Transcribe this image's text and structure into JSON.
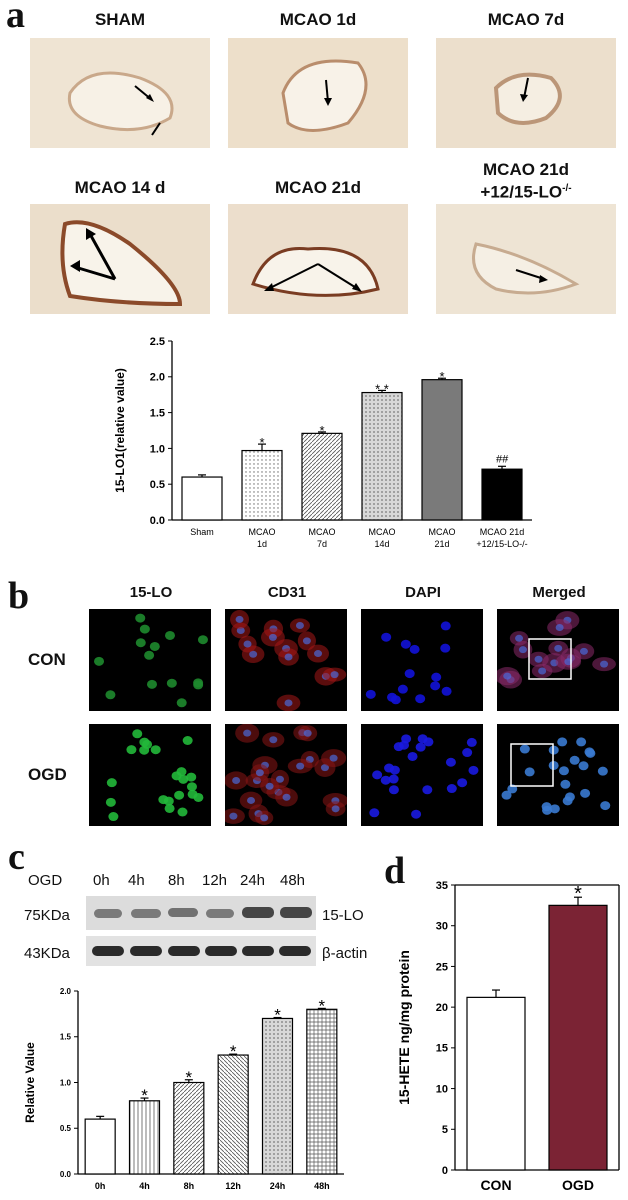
{
  "panel_a": {
    "letter": "a",
    "images": [
      {
        "label": "SHAM",
        "sup": ""
      },
      {
        "label": "MCAO 1d",
        "sup": ""
      },
      {
        "label": "MCAO 7d",
        "sup": ""
      },
      {
        "label": "MCAO 14 d",
        "sup": ""
      },
      {
        "label": "MCAO 21d",
        "sup": ""
      },
      {
        "label": "MCAO 21d\n+12/15-LO",
        "sup": "-/-"
      }
    ]
  },
  "panel_b": {
    "letter": "b",
    "columns": [
      "15-LO",
      "CD31",
      "DAPI",
      "Merged"
    ],
    "rows": [
      "CON",
      "OGD"
    ]
  },
  "panel_c": {
    "letter": "c",
    "ogd_label": "OGD",
    "times": [
      "0h",
      "4h",
      "8h",
      "12h",
      "24h",
      "48h"
    ],
    "markers": [
      {
        "size": "75KDa",
        "protein": "15-LO"
      },
      {
        "size": "43KDa",
        "protein": "β-actin"
      }
    ]
  },
  "panel_d": {
    "letter": "d"
  },
  "chart_data": [
    {
      "id": "a",
      "type": "bar",
      "categories": [
        "Sham",
        "MCAO\n1d",
        "MCAO\n7d",
        "MCAO\n14d",
        "MCAO\n21d",
        "MCAO 21d\n+12/15-LO-/-"
      ],
      "values": [
        0.6,
        0.97,
        1.21,
        1.78,
        1.96,
        0.71
      ],
      "errors": [
        0.03,
        0.09,
        0.02,
        0.03,
        0.02,
        0.04
      ],
      "annotations": [
        "",
        "*",
        "*",
        "* *",
        "*",
        "##"
      ],
      "fills": [
        "#ffffff",
        "#ffffff",
        "#ffffff",
        "#e4e4e4",
        "#7a7a7a",
        "#000000"
      ],
      "patterns": [
        "none",
        "dots",
        "diag",
        "dense",
        "solid",
        "solid"
      ],
      "ylabel": "15-LO1(relative value)",
      "ylim": [
        0,
        2.5
      ],
      "yticks": [
        "0.0",
        "0.5",
        "1.0",
        "1.5",
        "2.0",
        "2.5"
      ]
    },
    {
      "id": "c",
      "type": "bar",
      "categories": [
        "0h",
        "4h",
        "8h",
        "12h",
        "24h",
        "48h"
      ],
      "values": [
        0.6,
        0.8,
        1.0,
        1.3,
        1.7,
        1.8
      ],
      "errors": [
        0.03,
        0.03,
        0.03,
        0.01,
        0.01,
        0.01
      ],
      "annotations": [
        "",
        "*",
        "*",
        "*",
        "*",
        "*"
      ],
      "patterns": [
        "none",
        "vert",
        "diag",
        "diag2",
        "dense",
        "grid"
      ],
      "ylabel": "Relative Value",
      "ylim": [
        0,
        2.0
      ],
      "yticks": [
        "0.0",
        "0.5",
        "1.0",
        "1.5",
        "2.0"
      ]
    },
    {
      "id": "d",
      "type": "bar",
      "categories": [
        "CON",
        "OGD"
      ],
      "values": [
        21.2,
        32.5
      ],
      "errors": [
        0.9,
        1.0
      ],
      "annotations": [
        "",
        "*"
      ],
      "fills": [
        "#ffffff",
        "#7b2334"
      ],
      "ylabel": "15-HETE ng/mg protein",
      "ylim": [
        0,
        35
      ],
      "yticks": [
        "0",
        "5",
        "10",
        "15",
        "20",
        "25",
        "30",
        "35"
      ]
    }
  ]
}
